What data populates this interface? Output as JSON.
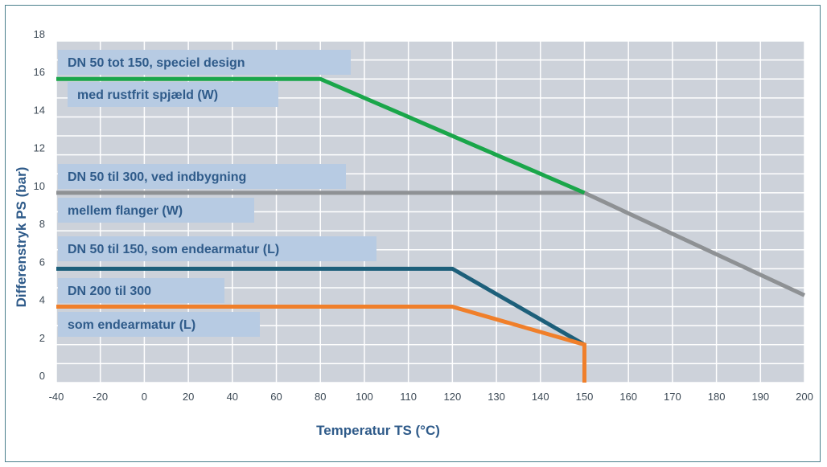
{
  "chart_data": {
    "type": "line",
    "xlabel": "Temperatur TS (°C)",
    "ylabel": "Differenstryk PS (bar)",
    "x_ticks": [
      "-40",
      "-20",
      "0",
      "20",
      "40",
      "60",
      "80",
      "100",
      "110",
      "120",
      "130",
      "140",
      "150",
      "160",
      "170",
      "180",
      "190",
      "200"
    ],
    "y_ticks": [
      "0",
      "2",
      "4",
      "6",
      "8",
      "10",
      "12",
      "14",
      "16",
      "18"
    ],
    "ylim": [
      0,
      18
    ],
    "grid": true,
    "series": [
      {
        "name": "DN 50 tot 150, speciel design med rustfrit spjæld (W)",
        "color": "#1aa64a",
        "points": [
          [
            "-40",
            16
          ],
          [
            "80",
            16
          ],
          [
            "150",
            10
          ]
        ]
      },
      {
        "name": "DN 50 til 300, ved indbygning mellem flanger (W)",
        "color": "#8e9194",
        "points": [
          [
            "-40",
            10
          ],
          [
            "150",
            10
          ],
          [
            "200",
            4.6
          ]
        ]
      },
      {
        "name": "DN 50 til 150, som endearmatur (L)",
        "color": "#1d5f7a",
        "points": [
          [
            "-40",
            6
          ],
          [
            "120",
            6
          ],
          [
            "150",
            2
          ]
        ]
      },
      {
        "name": "DN 200 til 300 som endearmatur (L)",
        "color": "#f07f2a",
        "points": [
          [
            "-40",
            4
          ],
          [
            "120",
            4
          ],
          [
            "150",
            2
          ],
          [
            "150",
            0
          ]
        ]
      }
    ],
    "annotations": [
      {
        "text": "DN 50 tot 150, speciel design",
        "series": 0
      },
      {
        "text": "med rustfrit spjæld (W)",
        "series": 0
      },
      {
        "text": "DN 50 til 300, ved indbygning",
        "series": 1
      },
      {
        "text": "mellem flanger (W)",
        "series": 1
      },
      {
        "text": "DN 50 til 150, som endearmatur (L)",
        "series": 2
      },
      {
        "text": "DN 200 til 300",
        "series": 3
      },
      {
        "text": "som endearmatur (L)",
        "series": 3
      }
    ],
    "colors": {
      "plot_background": "#cdd2da",
      "grid": "#ffffff",
      "label_box": "#b7cbe3",
      "text": "#2f5b8a",
      "axis_tick_text": "#3d4a56"
    }
  }
}
